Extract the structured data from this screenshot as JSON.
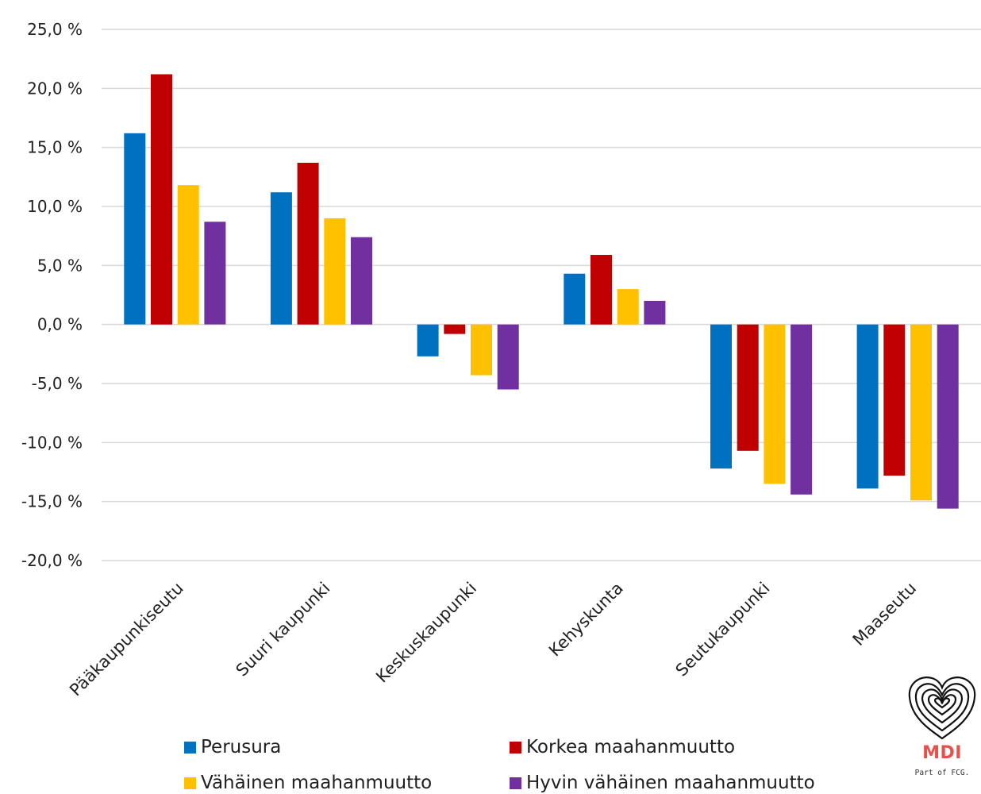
{
  "chart_data": {
    "type": "bar",
    "title": "",
    "xlabel": "",
    "ylabel": "",
    "ylim": [
      -20,
      25
    ],
    "yticks": [
      25,
      20,
      15,
      10,
      5,
      0,
      -5,
      -10,
      -15,
      -20
    ],
    "ytick_labels": [
      "25,0 %",
      "20,0 %",
      "15,0 %",
      "10,0 %",
      "5,0 %",
      "0,0 %",
      "-5,0 %",
      "-10,0 %",
      "-15,0 %",
      "-20,0 %"
    ],
    "grid": true,
    "legend_position": "bottom",
    "categories": [
      "Pääkaupunkiseutu",
      "Suuri kaupunki",
      "Keskuskaupunki",
      "Kehyskunta",
      "Seutukaupunki",
      "Maaseutu"
    ],
    "series": [
      {
        "name": "Perusura",
        "color": "#0070C0",
        "values": [
          16.2,
          11.2,
          -2.7,
          4.3,
          -12.2,
          -13.9
        ]
      },
      {
        "name": "Korkea maahanmuutto",
        "color": "#C00000",
        "values": [
          21.2,
          13.7,
          -0.8,
          5.9,
          -10.7,
          -12.8
        ]
      },
      {
        "name": "Vähäinen maahanmuutto",
        "color": "#FFC000",
        "values": [
          11.8,
          9.0,
          -4.3,
          3.0,
          -13.5,
          -14.9
        ]
      },
      {
        "name": "Hyvin vähäinen maahanmuutto",
        "color": "#7030A0",
        "values": [
          8.7,
          7.4,
          -5.5,
          2.0,
          -14.4,
          -15.6
        ]
      }
    ]
  },
  "logo": {
    "text": "MDI",
    "subtext": "Part of FCG.",
    "color": "#E8504A",
    "icon": "fingerprint-heart-icon"
  }
}
